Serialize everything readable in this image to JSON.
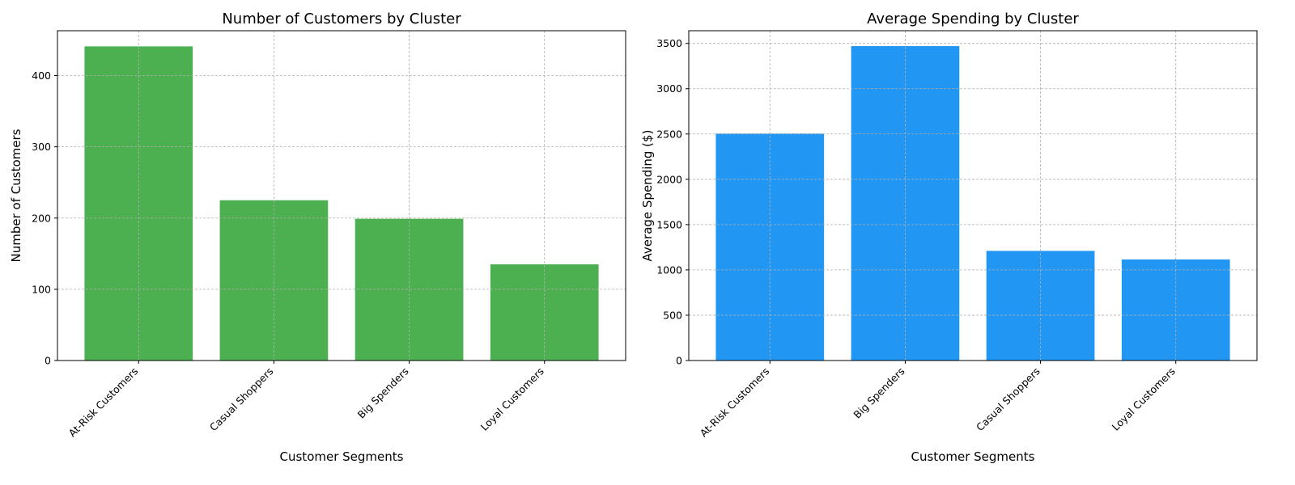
{
  "chart_data": [
    {
      "type": "bar",
      "title": "Number of Customers by Cluster",
      "xlabel": "Customer Segments",
      "ylabel": "Number of Customers",
      "categories": [
        "At-Risk Customers",
        "Casual Shoppers",
        "Big Spenders",
        "Loyal Customers"
      ],
      "values": [
        441,
        225,
        199,
        135
      ],
      "ylim": [
        0,
        463
      ],
      "yticks": [
        0,
        100,
        200,
        300,
        400
      ],
      "ytick_labels": [
        "0",
        "100",
        "200",
        "300",
        "400"
      ],
      "color": "#4caf50",
      "grid": true
    },
    {
      "type": "bar",
      "title": "Average Spending by Cluster",
      "xlabel": "Customer Segments",
      "ylabel": "Average Spending ($)",
      "categories": [
        "At-Risk Customers",
        "Big Spenders",
        "Casual Shoppers",
        "Loyal Customers"
      ],
      "values": [
        2505,
        3470,
        1210,
        1115
      ],
      "ylim": [
        0,
        3640
      ],
      "yticks": [
        0,
        500,
        1000,
        1500,
        2000,
        2500,
        3000,
        3500
      ],
      "ytick_labels": [
        "0",
        "500",
        "1000",
        "1500",
        "2000",
        "2500",
        "3000",
        "3500"
      ],
      "color": "#2196f3",
      "grid": true
    }
  ]
}
